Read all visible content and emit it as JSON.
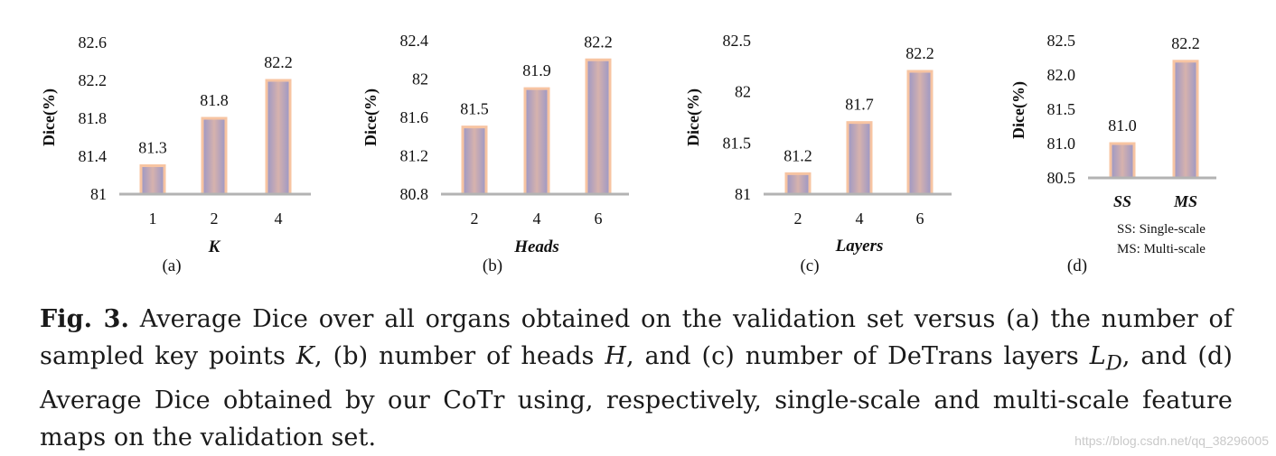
{
  "chart_data": [
    {
      "type": "bar",
      "panel": "(a)",
      "xlabel": "K",
      "ylabel": "Dice(%)",
      "categories": [
        "1",
        "2",
        "4"
      ],
      "values": [
        81.3,
        81.8,
        82.2
      ],
      "value_labels": [
        "81.3",
        "81.8",
        "82.2"
      ],
      "yticks": [
        "81",
        "81.4",
        "81.8",
        "82.2",
        "82.6"
      ],
      "ylim": [
        81,
        82.6
      ]
    },
    {
      "type": "bar",
      "panel": "(b)",
      "xlabel": "Heads",
      "ylabel": "Dice(%)",
      "categories": [
        "2",
        "4",
        "6"
      ],
      "values": [
        81.5,
        81.9,
        82.2
      ],
      "value_labels": [
        "81.5",
        "81.9",
        "82.2"
      ],
      "yticks": [
        "80.8",
        "81.2",
        "81.6",
        "82",
        "82.4"
      ],
      "ylim": [
        80.8,
        82.4
      ]
    },
    {
      "type": "bar",
      "panel": "(c)",
      "xlabel": "Layers",
      "ylabel": "Dice(%)",
      "categories": [
        "2",
        "4",
        "6"
      ],
      "values": [
        81.2,
        81.7,
        82.2
      ],
      "value_labels": [
        "81.2",
        "81.7",
        "82.2"
      ],
      "yticks": [
        "81",
        "81.5",
        "82",
        "82.5"
      ],
      "ylim": [
        81,
        82.5
      ]
    },
    {
      "type": "bar",
      "panel": "(d)",
      "xlabel": "",
      "ylabel": "Dice(%)",
      "categories": [
        "SS",
        "MS"
      ],
      "values": [
        81.0,
        82.2
      ],
      "value_labels": [
        "81.0",
        "82.2"
      ],
      "yticks": [
        "80.5",
        "81.0",
        "81.5",
        "82.0",
        "82.5"
      ],
      "ylim": [
        80.5,
        82.5
      ],
      "legend": [
        "SS: Single-scale",
        "MS: Multi-scale"
      ]
    }
  ],
  "style": {
    "bar_fill_top": "#8e8cc0",
    "bar_fill_mid": "#d4b0ac",
    "bar_stroke": "#f7c4a2",
    "axis_color": "#b3b3b3"
  },
  "caption": {
    "label": "Fig. 3.",
    "part1": " Average Dice over all organs obtained on the validation set versus (a) the number of sampled key points ",
    "var_k": "K",
    "part2": ", (b) number of heads ",
    "var_h": "H",
    "part3": ", and (c) number of DeTrans layers ",
    "var_l": "L",
    "var_l_sub": "D",
    "part4": ", and (d) Average Dice obtained by our CoTr using, respectively, single-scale and multi-scale feature maps on the validation set."
  },
  "watermark": "https://blog.csdn.net/qq_38296005"
}
